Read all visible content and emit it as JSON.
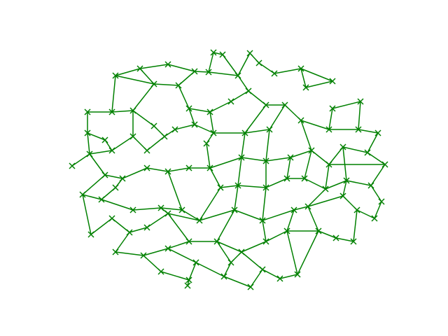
{
  "chart_data": {
    "type": "network",
    "color": "#008000",
    "marker": "x",
    "xlim": [
      0,
      4.96
    ],
    "ylim": [
      0,
      3.7
    ],
    "x": [
      2.25,
      2.38,
      2.77,
      2.9,
      3.5,
      3.95,
      3.57,
      3.12,
      2.6,
      1.98,
      1.6,
      1.2,
      0.85,
      1.4,
      1.75,
      2.18,
      0.45,
      0.8,
      1.1,
      1.4,
      1.55,
      1.9,
      2.2,
      2.5,
      2.75,
      3.0,
      3.27,
      3.5,
      3.95,
      4.35,
      4.32,
      3.9,
      0.45,
      0.7,
      0.8,
      1.1,
      1.3,
      1.7,
      1.98,
      2.25,
      2.7,
      3.05,
      0.23,
      0.48,
      0.7,
      0.95,
      1.3,
      1.6,
      1.9,
      2.15,
      2.2,
      2.65,
      3.0,
      3.35,
      3.65,
      3.9,
      4.1,
      4.45,
      4.6,
      4.7,
      0.38,
      0.65,
      0.85,
      1.1,
      1.5,
      1.8,
      2.05,
      2.35,
      2.6,
      3.0,
      3.3,
      3.55,
      3.85,
      4.15,
      4.5,
      4.65,
      0.5,
      0.8,
      1.05,
      1.3,
      1.6,
      2.55,
      2.95,
      3.4,
      3.6,
      4.1,
      4.55,
      4.3,
      0.85,
      1.25,
      1.6,
      1.9,
      2.3,
      2.65,
      3.0,
      3.3,
      3.75,
      4.0,
      4.25,
      1.5,
      1.9,
      2.0,
      2.4,
      2.5,
      2.78,
      2.95,
      3.2,
      3.45,
      1.88
    ],
    "y": [
      3.52,
      3.49,
      3.51,
      3.37,
      3.29,
      3.11,
      3.02,
      3.22,
      3.19,
      3.25,
      3.35,
      3.29,
      3.19,
      3.07,
      3.05,
      3.24,
      2.67,
      2.67,
      2.69,
      2.47,
      2.32,
      2.72,
      2.67,
      2.82,
      2.97,
      2.77,
      2.77,
      2.55,
      2.72,
      2.82,
      2.42,
      2.42,
      2.37,
      2.27,
      2.12,
      2.32,
      2.12,
      2.42,
      2.49,
      2.37,
      2.37,
      2.42,
      1.9,
      2.07,
      1.77,
      1.72,
      1.87,
      1.82,
      1.87,
      2.22,
      1.87,
      2.02,
      1.97,
      2.02,
      2.12,
      1.92,
      2.17,
      2.09,
      2.37,
      1.92,
      1.49,
      1.42,
      1.59,
      1.27,
      1.3,
      1.27,
      1.12,
      1.59,
      1.62,
      1.59,
      1.72,
      1.72,
      1.57,
      1.69,
      1.62,
      1.39,
      0.92,
      1.15,
      0.95,
      1.02,
      1.22,
      1.27,
      1.12,
      1.27,
      1.32,
      1.47,
      1.15,
      1.27,
      0.67,
      0.62,
      0.72,
      0.82,
      0.82,
      0.67,
      0.82,
      0.97,
      0.97,
      0.87,
      0.82,
      0.39,
      0.27,
      0.52,
      0.32,
      0.52,
      0.17,
      0.42,
      0.29,
      0.35,
      0.19
    ],
    "edges": [
      [
        0,
        1
      ],
      [
        0,
        15
      ],
      [
        1,
        8
      ],
      [
        2,
        3
      ],
      [
        2,
        8
      ],
      [
        3,
        7
      ],
      [
        7,
        4
      ],
      [
        4,
        6
      ],
      [
        4,
        5
      ],
      [
        6,
        5
      ],
      [
        8,
        15
      ],
      [
        15,
        9
      ],
      [
        9,
        10
      ],
      [
        10,
        11
      ],
      [
        11,
        12
      ],
      [
        12,
        13
      ],
      [
        13,
        14
      ],
      [
        14,
        9
      ],
      [
        11,
        13
      ],
      [
        12,
        17
      ],
      [
        16,
        17
      ],
      [
        17,
        18
      ],
      [
        18,
        13
      ],
      [
        14,
        21
      ],
      [
        21,
        22
      ],
      [
        22,
        23
      ],
      [
        23,
        24
      ],
      [
        24,
        8
      ],
      [
        24,
        25
      ],
      [
        25,
        26
      ],
      [
        26,
        27
      ],
      [
        27,
        31
      ],
      [
        31,
        28
      ],
      [
        28,
        29
      ],
      [
        29,
        30
      ],
      [
        30,
        31
      ],
      [
        16,
        32
      ],
      [
        32,
        33
      ],
      [
        33,
        34
      ],
      [
        34,
        35
      ],
      [
        35,
        18
      ],
      [
        35,
        36
      ],
      [
        36,
        20
      ],
      [
        20,
        19
      ],
      [
        19,
        18
      ],
      [
        20,
        37
      ],
      [
        37,
        38
      ],
      [
        38,
        21
      ],
      [
        38,
        39
      ],
      [
        39,
        22
      ],
      [
        39,
        40
      ],
      [
        40,
        25
      ],
      [
        40,
        41
      ],
      [
        41,
        26
      ],
      [
        42,
        43
      ],
      [
        43,
        32
      ],
      [
        43,
        34
      ],
      [
        44,
        43
      ],
      [
        44,
        45
      ],
      [
        45,
        46
      ],
      [
        46,
        47
      ],
      [
        47,
        48
      ],
      [
        48,
        50
      ],
      [
        50,
        49
      ],
      [
        49,
        39
      ],
      [
        50,
        51
      ],
      [
        51,
        40
      ],
      [
        51,
        52
      ],
      [
        52,
        41
      ],
      [
        52,
        53
      ],
      [
        53,
        54
      ],
      [
        54,
        27
      ],
      [
        54,
        55
      ],
      [
        55,
        56
      ],
      [
        56,
        57
      ],
      [
        57,
        58
      ],
      [
        58,
        30
      ],
      [
        57,
        59
      ],
      [
        59,
        55
      ],
      [
        60,
        44
      ],
      [
        60,
        61
      ],
      [
        61,
        62
      ],
      [
        62,
        45
      ],
      [
        61,
        63
      ],
      [
        63,
        64
      ],
      [
        64,
        65
      ],
      [
        65,
        47
      ],
      [
        65,
        66
      ],
      [
        66,
        67
      ],
      [
        67,
        50
      ],
      [
        67,
        68
      ],
      [
        68,
        51
      ],
      [
        68,
        69
      ],
      [
        69,
        52
      ],
      [
        69,
        70
      ],
      [
        70,
        53
      ],
      [
        70,
        71
      ],
      [
        71,
        54
      ],
      [
        71,
        72
      ],
      [
        72,
        55
      ],
      [
        72,
        73
      ],
      [
        73,
        56
      ],
      [
        73,
        74
      ],
      [
        74,
        59
      ],
      [
        74,
        75
      ],
      [
        60,
        76
      ],
      [
        76,
        77
      ],
      [
        77,
        78
      ],
      [
        78,
        79
      ],
      [
        79,
        80
      ],
      [
        80,
        64
      ],
      [
        80,
        66
      ],
      [
        66,
        81
      ],
      [
        81,
        68
      ],
      [
        81,
        82
      ],
      [
        82,
        69
      ],
      [
        82,
        83
      ],
      [
        83,
        84
      ],
      [
        84,
        72
      ],
      [
        84,
        85
      ],
      [
        85,
        87
      ],
      [
        87,
        86
      ],
      [
        86,
        75
      ],
      [
        85,
        73
      ],
      [
        88,
        78
      ],
      [
        88,
        89
      ],
      [
        89,
        90
      ],
      [
        90,
        91
      ],
      [
        91,
        80
      ],
      [
        91,
        92
      ],
      [
        92,
        81
      ],
      [
        92,
        93
      ],
      [
        93,
        94
      ],
      [
        94,
        82
      ],
      [
        94,
        95
      ],
      [
        95,
        83
      ],
      [
        95,
        96
      ],
      [
        96,
        84
      ],
      [
        96,
        97
      ],
      [
        97,
        98
      ],
      [
        98,
        87
      ],
      [
        89,
        99
      ],
      [
        99,
        100
      ],
      [
        100,
        108
      ],
      [
        100,
        101
      ],
      [
        101,
        90
      ],
      [
        101,
        102
      ],
      [
        102,
        103
      ],
      [
        103,
        92
      ],
      [
        103,
        93
      ],
      [
        102,
        104
      ],
      [
        104,
        105
      ],
      [
        105,
        93
      ],
      [
        105,
        106
      ],
      [
        106,
        107
      ],
      [
        107,
        95
      ],
      [
        107,
        96
      ]
    ]
  }
}
